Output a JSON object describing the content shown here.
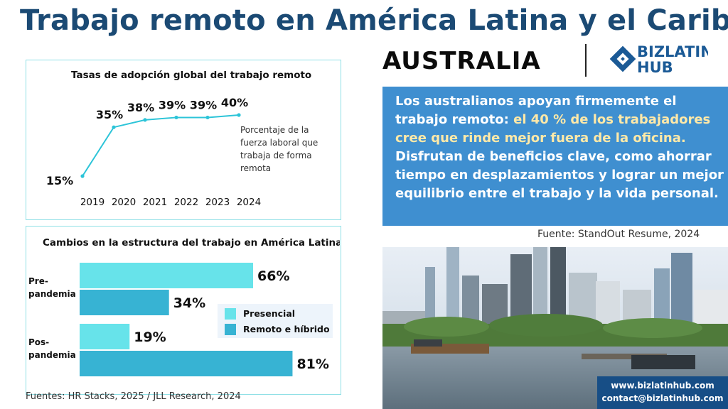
{
  "title": "Trabajo remoto en América Latina y el Caribe:",
  "country": "AUSTRALIA",
  "logo": {
    "line1": "BIZLATIN",
    "line2": "HUB",
    "icon": "bizlatinhub-logo-icon"
  },
  "callout": {
    "lead": "Los australianos apoyan firmemente el trabajo remoto:",
    "highlight": " el 40 % de los trabajadores cree que rinde mejor fuera de la oficina.",
    "rest": " Disfrutan de beneficios clave, como ahorrar tiempo en desplazamientos y lograr un mejor equilibrio entre el trabajo y la vida personal."
  },
  "source_right": "Fuente: StandOut Resume, 2024",
  "sources_left": "Fuentes: HR Stacks, 2025 / JLL Research, 2024",
  "contact": {
    "website": "www.bizlatinhub.com",
    "email": "contact@bizlatinhub.com"
  },
  "colors": {
    "title": "#1b4a74",
    "callout_bg": "#3f8fd0",
    "line": "#2cc4d8",
    "presencial": "#67e3ea",
    "remoto": "#37b3d3",
    "contact_bg": "#174e86"
  },
  "chart_data": [
    {
      "type": "line",
      "title": "Tasas de adopción global del trabajo remoto",
      "x": [
        "2019",
        "2020",
        "2021",
        "2022",
        "2023",
        "2024"
      ],
      "values": [
        15,
        35,
        38,
        39,
        39,
        40
      ],
      "labels": [
        "15%",
        "35%",
        "38%",
        "39%",
        "39%",
        "40%"
      ],
      "annotation": "Porcentaje de la fuerza laboral que trabaja de forma remota",
      "annotation_lines": [
        "Porcentaje de la",
        "fuerza laboral que",
        "trabaja de forma",
        "remota"
      ],
      "grid": false
    },
    {
      "type": "bar",
      "orientation": "horizontal",
      "title": "Cambios en la estructura del trabajo en América Latina",
      "categories": [
        "Pre-pandemia",
        "Pos-pandemia"
      ],
      "category_lines": [
        [
          "Pre-",
          "pandemia"
        ],
        [
          "Pos-",
          "pandemia"
        ]
      ],
      "series": [
        {
          "name": "Presencial",
          "values": [
            66,
            19
          ],
          "labels": [
            "66%",
            "19%"
          ]
        },
        {
          "name": "Remoto e híbrido",
          "values": [
            34,
            81
          ],
          "labels": [
            "34%",
            "81%"
          ]
        }
      ],
      "legend": "right",
      "grid": false
    }
  ]
}
